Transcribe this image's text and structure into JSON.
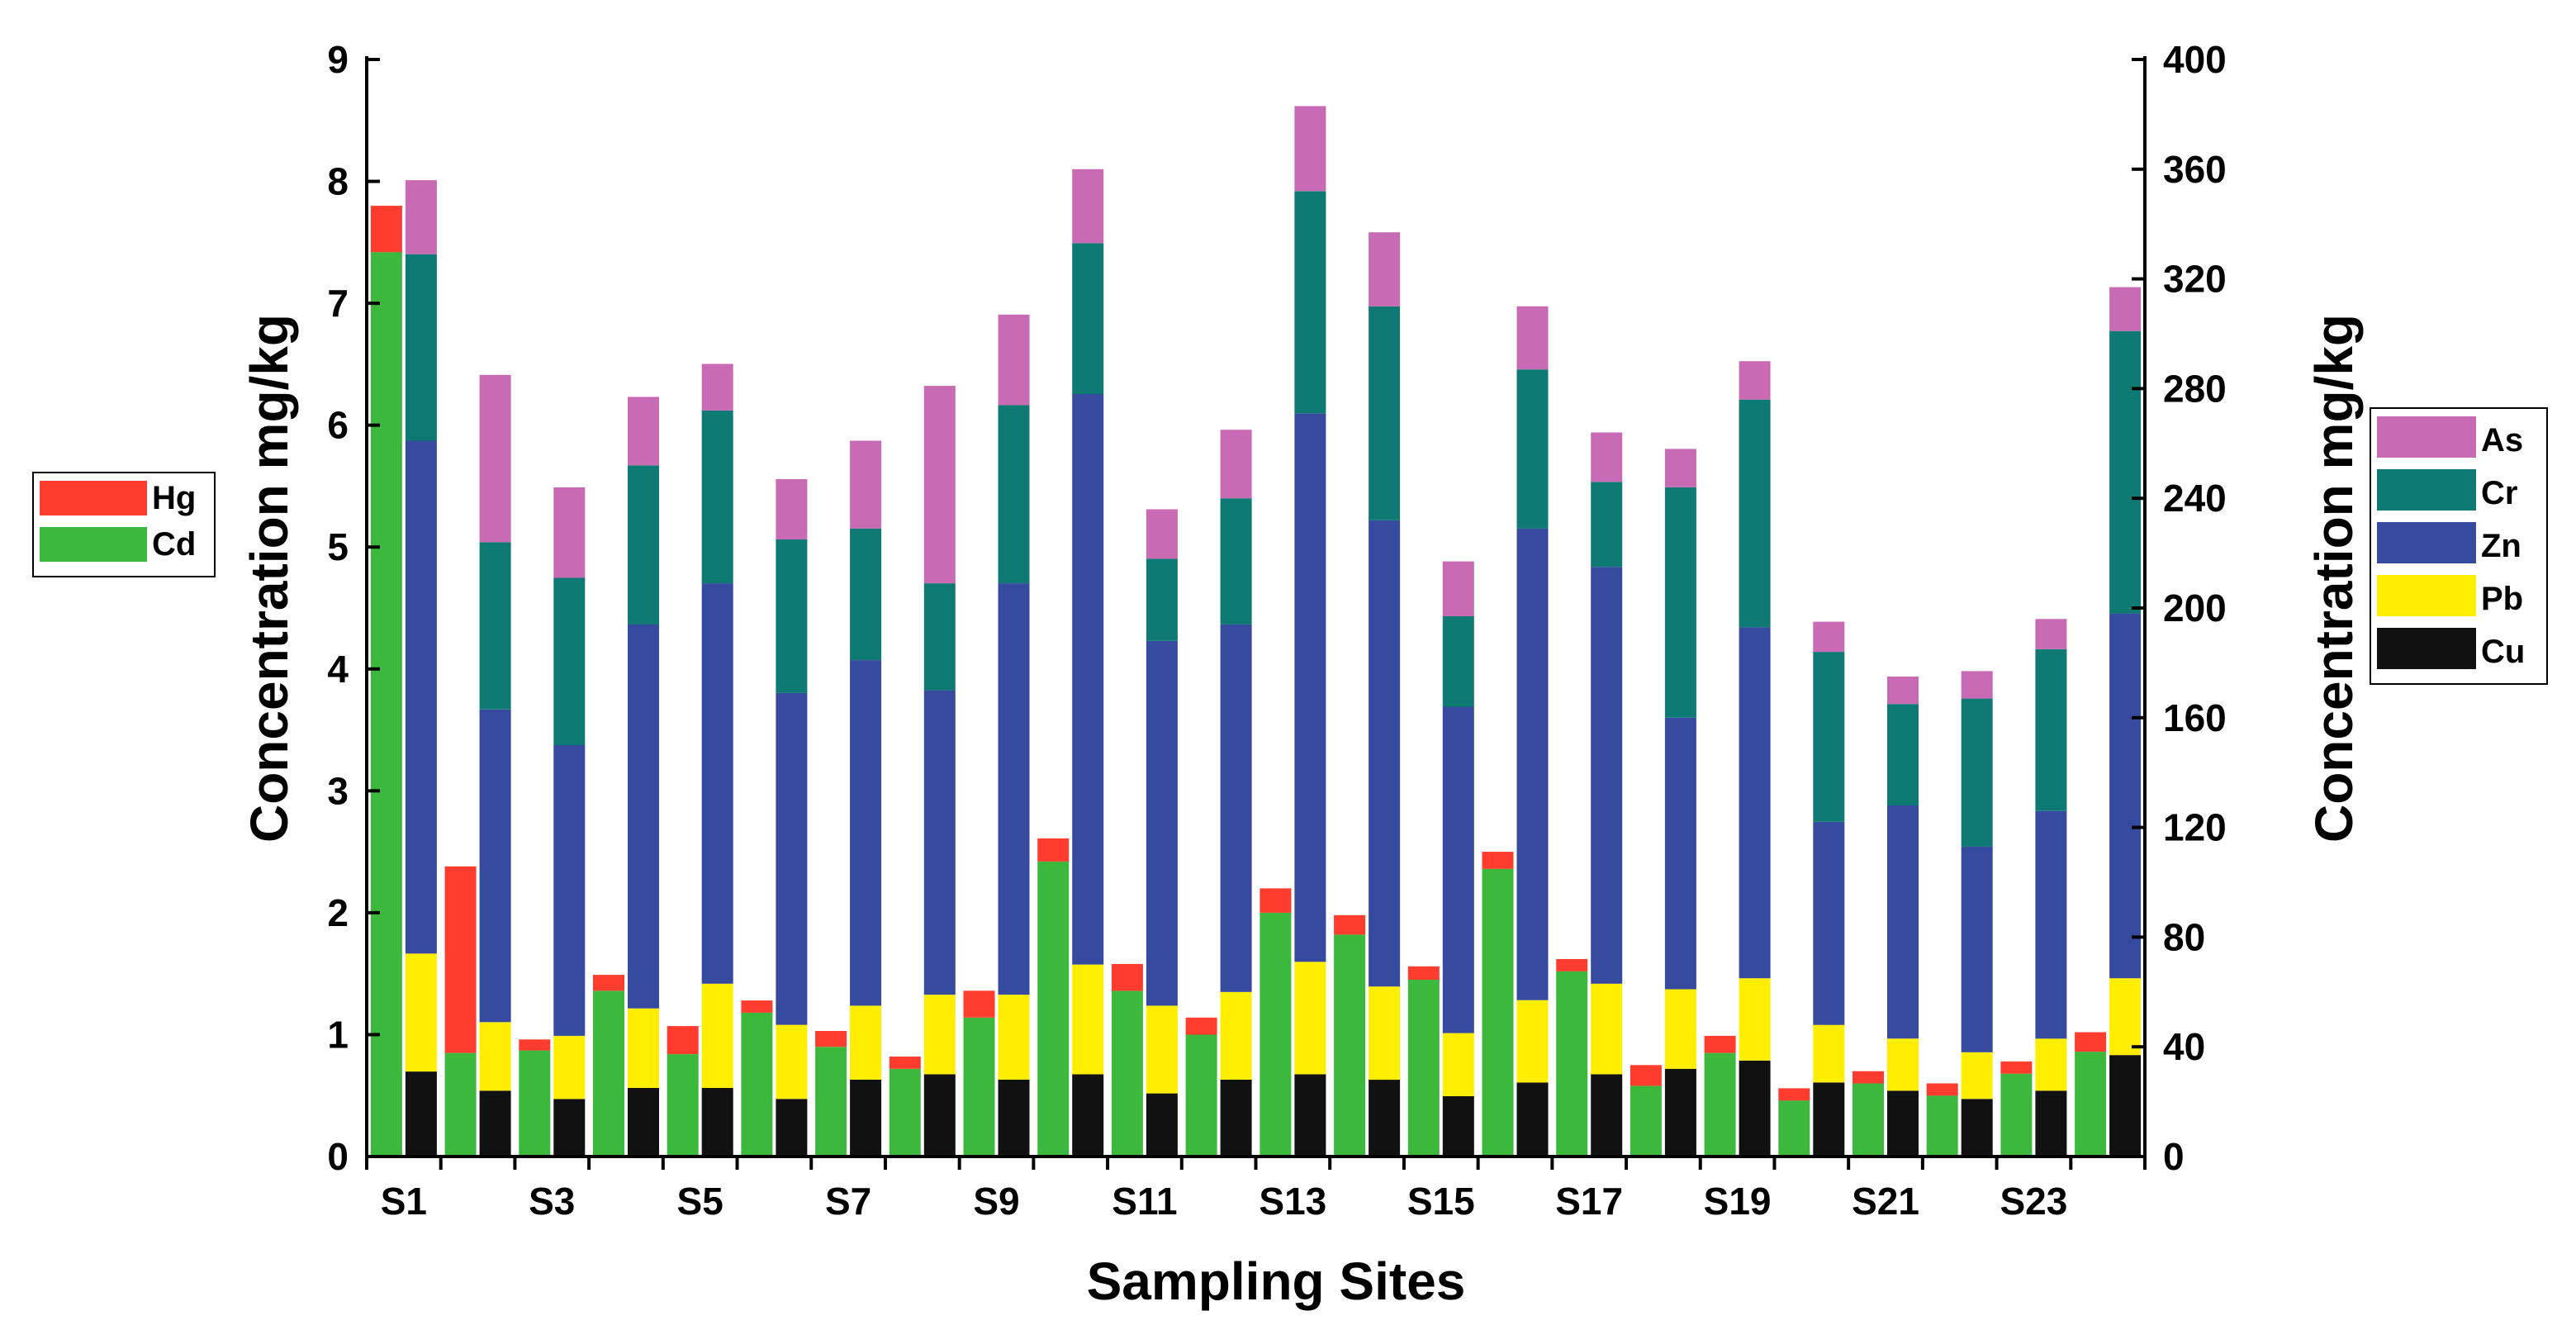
{
  "chart_data": {
    "type": "bar",
    "stacked": true,
    "dual_axis": true,
    "xlabel": "Sampling Sites",
    "ylabel_left": "Concentration  mg/kg",
    "ylabel_right": "Concentration  mg/kg",
    "ylim_left": [
      0,
      9
    ],
    "ylim_right": [
      0,
      400
    ],
    "yticks_left": [
      "0",
      "1",
      "2",
      "3",
      "4",
      "5",
      "6",
      "7",
      "8",
      "9"
    ],
    "yticks_right": [
      "0",
      "40",
      "80",
      "120",
      "160",
      "200",
      "240",
      "280",
      "320",
      "360",
      "400"
    ],
    "categories": [
      "S1",
      "S2",
      "S3",
      "S4",
      "S5",
      "S6",
      "S7",
      "S8",
      "S9",
      "S10",
      "S11",
      "S12",
      "S13",
      "S14",
      "S15",
      "S16",
      "S17",
      "S18",
      "S19",
      "S20",
      "S21",
      "S22",
      "S23",
      "S24"
    ],
    "x_tick_labels": [
      "S1",
      "S3",
      "S5",
      "S7",
      "S9",
      "S11",
      "S13",
      "S15",
      "S17",
      "S19",
      "S21",
      "S23"
    ],
    "series_left": [
      {
        "name": "Cd",
        "color": "#3cb83c",
        "values": [
          7.42,
          0.85,
          0.87,
          1.36,
          0.84,
          1.18,
          0.9,
          0.72,
          1.14,
          2.42,
          1.36,
          1.0,
          2.0,
          1.82,
          1.45,
          2.36,
          1.52,
          0.58,
          0.85,
          0.46,
          0.6,
          0.5,
          0.68,
          0.86
        ]
      },
      {
        "name": "Hg",
        "color": "#ff3c2d",
        "values": [
          0.38,
          1.53,
          0.09,
          0.13,
          0.23,
          0.1,
          0.13,
          0.1,
          0.22,
          0.19,
          0.22,
          0.14,
          0.2,
          0.16,
          0.11,
          0.14,
          0.1,
          0.17,
          0.14,
          0.1,
          0.1,
          0.1,
          0.1,
          0.16
        ]
      }
    ],
    "series_right": [
      {
        "name": "Cu",
        "color": "#111111",
        "values": [
          31,
          24,
          21,
          25,
          25,
          21,
          28,
          30,
          28,
          30,
          23,
          28,
          30,
          28,
          22,
          27,
          30,
          32,
          35,
          27,
          24,
          21,
          24,
          37
        ]
      },
      {
        "name": "Pb",
        "color": "#ffee00",
        "values": [
          43,
          25,
          23,
          29,
          38,
          27,
          27,
          29,
          31,
          40,
          32,
          32,
          41,
          34,
          23,
          30,
          33,
          29,
          30,
          21,
          19,
          17,
          19,
          28
        ]
      },
      {
        "name": "Zn",
        "color": "#364aa0",
        "values": [
          187,
          114,
          106,
          140,
          146,
          121,
          126,
          111,
          150,
          208,
          133,
          134,
          200,
          170,
          119,
          172,
          152,
          99,
          128,
          74,
          85,
          75,
          83,
          133
        ]
      },
      {
        "name": "Cr",
        "color": "#0f7a73",
        "values": [
          68,
          61,
          61,
          58,
          63,
          56,
          48,
          39,
          65,
          55,
          30,
          46,
          81,
          78,
          33,
          58,
          31,
          84,
          83,
          62,
          37,
          54,
          59,
          103
        ]
      },
      {
        "name": "As",
        "color": "#c86ab4",
        "values": [
          27,
          61,
          33,
          25,
          17,
          22,
          32,
          72,
          33,
          27,
          18,
          25,
          31,
          27,
          20,
          23,
          18,
          14,
          14,
          11,
          10,
          10,
          11,
          16
        ]
      }
    ],
    "legend_left": {
      "placement": "left-middle",
      "items": [
        "Hg",
        "Cd"
      ]
    },
    "legend_right": {
      "placement": "right-middle",
      "items": [
        "As",
        "Cr",
        "Zn",
        "Pb",
        "Cu"
      ]
    }
  }
}
